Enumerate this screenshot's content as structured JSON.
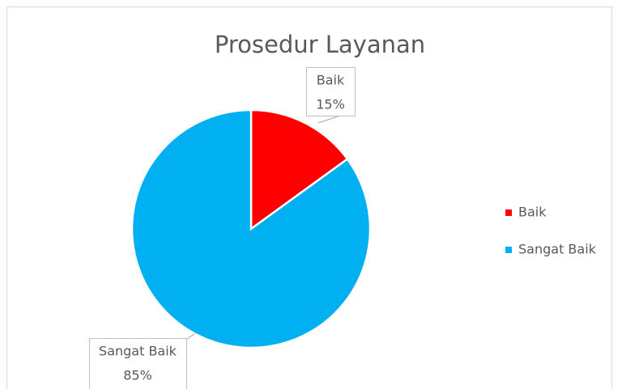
{
  "chart_data": {
    "type": "pie",
    "title": "Prosedur Layanan",
    "categories": [
      "Baik",
      "Sangat Baik"
    ],
    "values": [
      15,
      85
    ],
    "value_labels": [
      "15%",
      "85%"
    ],
    "colors": [
      "#ff0000",
      "#00b0f0"
    ],
    "legend": "right"
  }
}
